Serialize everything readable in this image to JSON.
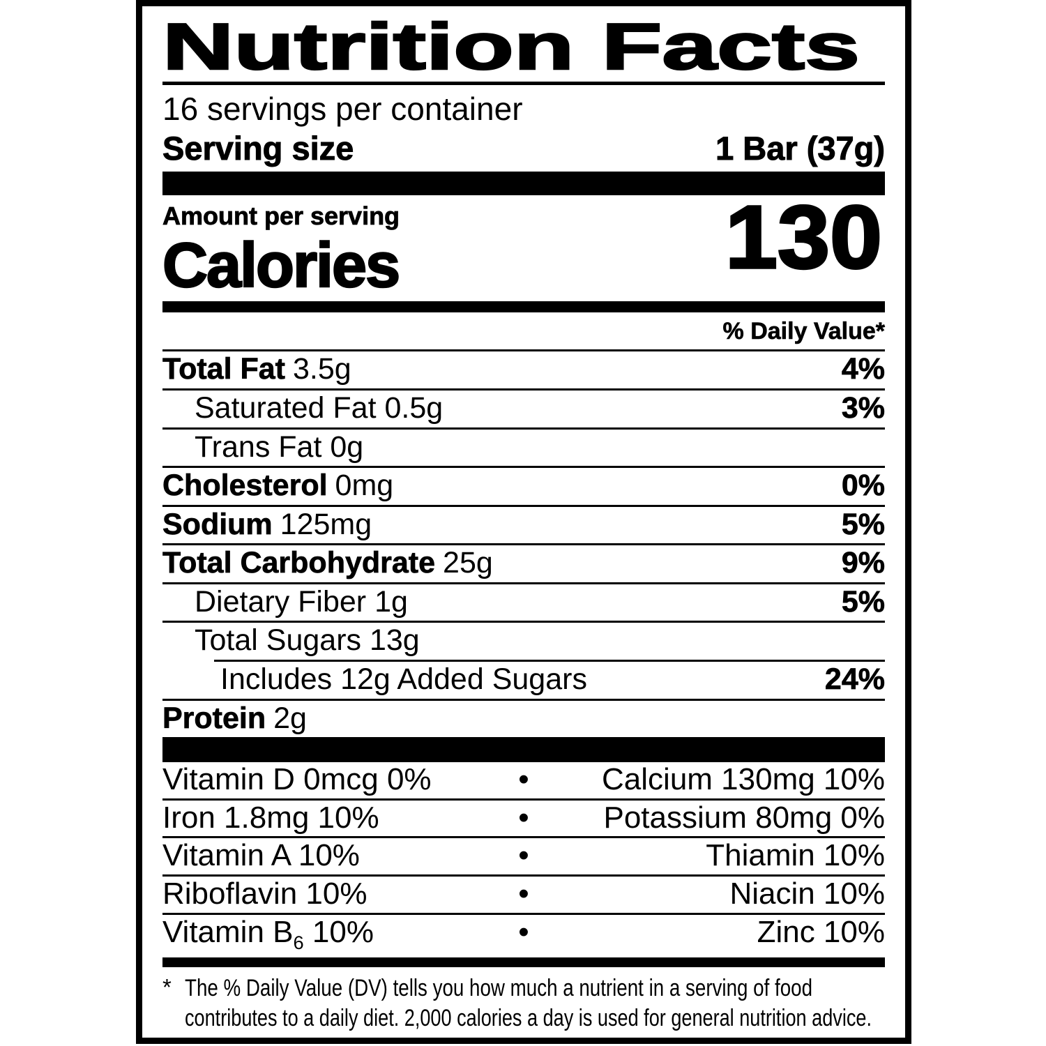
{
  "label": {
    "title": "Nutrition Facts",
    "servings_per_container": "16 servings per container",
    "serving_size_label": "Serving size",
    "serving_size_value": "1 Bar (37g)",
    "amount_per_serving": "Amount per serving",
    "calories_label": "Calories",
    "calories_value": "130",
    "daily_value_header": "% Daily Value*",
    "rows": [
      {
        "name": "Total Fat",
        "amount": "3.5g",
        "pct": "4%"
      },
      {
        "name": "",
        "amount": "Saturated Fat 0.5g",
        "pct": "3%"
      },
      {
        "name": "",
        "amount": "Trans Fat 0g",
        "pct": ""
      },
      {
        "name": "Cholesterol",
        "amount": "0mg",
        "pct": "0%"
      },
      {
        "name": "Sodium",
        "amount": "125mg",
        "pct": "5%"
      },
      {
        "name": "Total Carbohydrate",
        "amount": "25g",
        "pct": "9%"
      },
      {
        "name": "",
        "amount": "Dietary Fiber 1g",
        "pct": "5%"
      },
      {
        "name": "",
        "amount": "Total Sugars 13g",
        "pct": ""
      },
      {
        "name": "",
        "amount": "Includes 12g Added Sugars",
        "pct": "24%"
      },
      {
        "name": "Protein",
        "amount": "2g",
        "pct": ""
      }
    ],
    "vitamins": [
      {
        "left": "Vitamin D 0mcg 0%",
        "right": "Calcium 130mg 10%"
      },
      {
        "left": "Iron 1.8mg 10%",
        "right": "Potassium 80mg 0%"
      },
      {
        "left": "Vitamin A 10%",
        "right": "Thiamin 10%"
      },
      {
        "left": "Riboflavin 10%",
        "right": "Niacin 10%"
      },
      {
        "left_pre": "Vitamin B",
        "left_sub": "6",
        "left_post": " 10%",
        "right": "Zinc 10%"
      }
    ],
    "bullet": "•",
    "footnote_marker": "*",
    "footnote_line1": "The % Daily Value (DV) tells you how much a nutrient in a serving of food",
    "footnote_line2": "contributes to a daily diet. 2,000 calories a day is used for general nutrition advice.",
    "colors": {
      "ink": "#000000",
      "paper": "#ffffff"
    }
  }
}
